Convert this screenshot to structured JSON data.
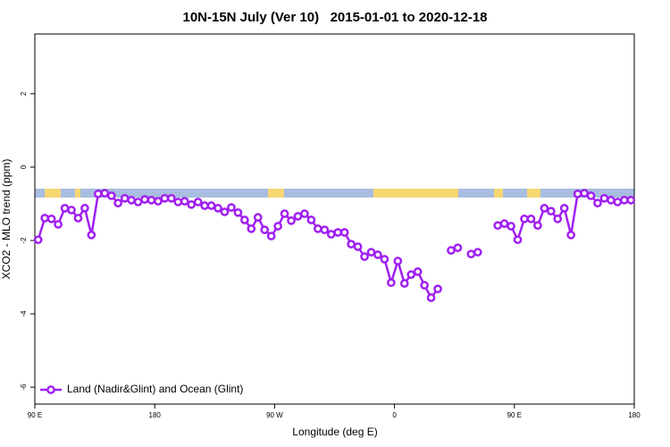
{
  "chart_data": {
    "type": "line",
    "title": "10N-15N July (Ver 10)   2015-01-01 to 2020-12-18",
    "x_label": "Longitude (deg E)",
    "y_label": "XCO2 - MLO trend (ppm)",
    "xlim": [
      90,
      540
    ],
    "xticks": [
      {
        "value": 90,
        "label": "90 E"
      },
      180,
      {
        "value": 270,
        "label": "90 W"
      },
      {
        "value": 360,
        "label": "0"
      },
      {
        "value": 450,
        "label": "90 E"
      },
      {
        "value": 540,
        "label": "180"
      }
    ],
    "ylim": [
      -6.46,
      3.63
    ],
    "yticks": [
      2,
      0,
      -2,
      -4,
      -6
    ],
    "legend": "bottom left",
    "x": [
      92.5,
      97.5,
      102.5,
      107.5,
      112.5,
      117.5,
      122.5,
      127.5,
      132.5,
      137.5,
      142.5,
      147.5,
      152.5,
      157.5,
      162.5,
      167.5,
      172.5,
      177.5,
      182.5,
      187.5,
      192.5,
      197.5,
      202.5,
      207.5,
      212.5,
      217.5,
      222.5,
      227.5,
      232.5,
      237.5,
      242.5,
      247.5,
      252.5,
      257.5,
      262.5,
      267.5,
      272.5,
      277.5,
      282.5,
      287.5,
      292.5,
      297.5,
      302.5,
      307.5,
      312.5,
      317.5,
      322.5,
      327.5,
      332.5,
      337.5,
      342.5,
      347.5,
      352.5,
      357.5,
      362.5,
      367.5,
      372.5,
      377.5,
      382.5,
      387.5,
      392.5,
      397.5,
      402.5,
      407.5,
      412.5,
      417.5,
      422.5,
      427.5,
      432.5,
      437.5,
      442.5,
      447.5,
      452.5,
      457.5,
      462.5,
      467.5,
      472.5,
      477.5,
      482.5,
      487.5,
      492.5,
      497.5,
      502.5,
      507.5,
      512.5,
      517.5,
      522.5,
      527.5,
      532.5,
      537.5
    ],
    "series": [
      {
        "name": "Land (Nadir&Glint) and Ocean (Glint)",
        "color": "#a020f0",
        "values": [
          -1.98,
          -1.39,
          -1.41,
          -1.56,
          -1.12,
          -1.17,
          -1.39,
          -1.12,
          -1.85,
          -0.73,
          -0.71,
          -0.78,
          -0.98,
          -0.85,
          -0.9,
          -0.95,
          -0.88,
          -0.9,
          -0.93,
          -0.85,
          -0.85,
          -0.95,
          -0.93,
          -1.02,
          -0.95,
          -1.05,
          -1.05,
          -1.12,
          -1.22,
          -1.1,
          -1.24,
          -1.44,
          -1.68,
          -1.37,
          -1.71,
          -1.88,
          -1.61,
          -1.27,
          -1.46,
          -1.34,
          -1.27,
          -1.44,
          -1.68,
          -1.71,
          -1.83,
          -1.78,
          -1.78,
          -2.1,
          -2.17,
          -2.44,
          -2.32,
          -2.39,
          -2.51,
          -3.15,
          -2.56,
          -3.17,
          -2.93,
          -2.85,
          -3.22,
          -3.56,
          -3.32,
          null,
          -2.27,
          -2.2,
          null,
          -2.37,
          -2.32,
          null,
          null,
          -1.59,
          -1.54,
          -1.61,
          -1.98,
          -1.41,
          -1.41,
          -1.59,
          -1.12,
          -1.2,
          -1.41,
          -1.12,
          -1.85,
          -0.73,
          -0.71,
          -0.78,
          -0.98,
          -0.85,
          -0.9,
          -0.95,
          -0.9,
          -0.9
        ]
      }
    ]
  }
}
